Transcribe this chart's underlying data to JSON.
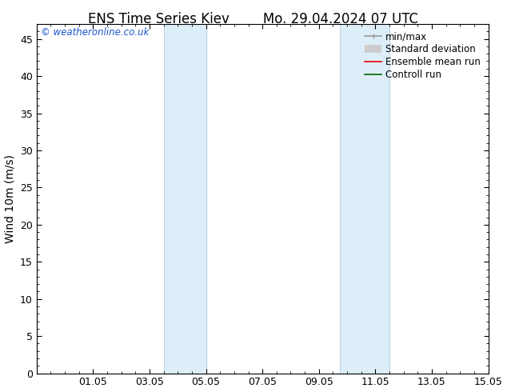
{
  "title_left": "ENS Time Series Kiev",
  "title_right": "Mo. 29.04.2024 07 UTC",
  "ylabel": "Wind 10m (m/s)",
  "xlim": [
    0,
    16
  ],
  "ylim": [
    0,
    47
  ],
  "yticks": [
    0,
    5,
    10,
    15,
    20,
    25,
    30,
    35,
    40,
    45
  ],
  "xtick_labels": [
    "01.05",
    "03.05",
    "05.05",
    "07.05",
    "09.05",
    "11.05",
    "13.05",
    "15.05"
  ],
  "xtick_positions": [
    2,
    4,
    6,
    8,
    10,
    12,
    14,
    16
  ],
  "shaded_regions": [
    {
      "xstart": 4.5,
      "xend": 6.0
    },
    {
      "xstart": 10.75,
      "xend": 12.5
    }
  ],
  "shaded_color": "#ddeef8",
  "shaded_border_color": "#b8d4e8",
  "background_color": "#ffffff",
  "watermark_text": "© weatheronline.co.uk",
  "watermark_color": "#1a56cc",
  "legend_items": [
    {
      "label": "min/max",
      "color": "#999999",
      "lw": 1.2
    },
    {
      "label": "Standard deviation",
      "color": "#cccccc",
      "lw": 7
    },
    {
      "label": "Ensemble mean run",
      "color": "#ee0000",
      "lw": 1.2
    },
    {
      "label": "Controll run",
      "color": "#006600",
      "lw": 1.2
    }
  ],
  "title_fontsize": 12,
  "axis_label_fontsize": 10,
  "tick_fontsize": 9,
  "legend_fontsize": 8.5,
  "watermark_fontsize": 8.5
}
